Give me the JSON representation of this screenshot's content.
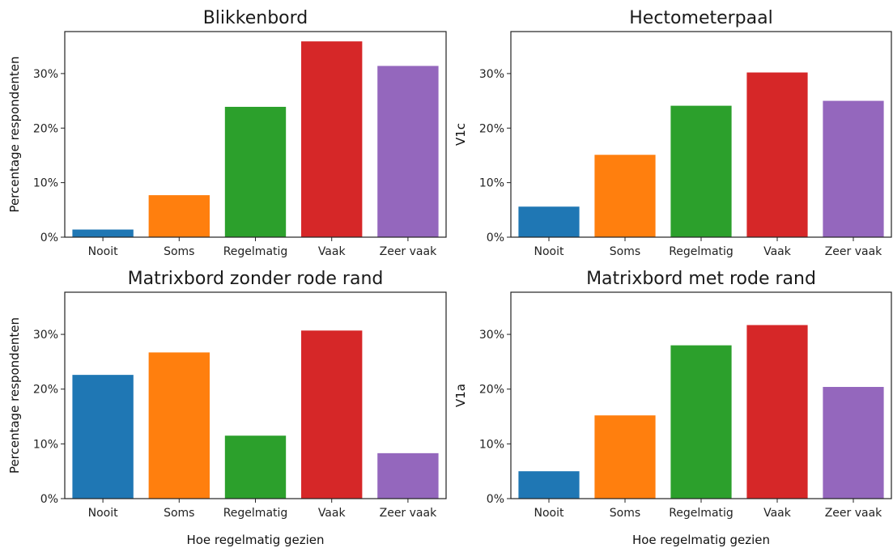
{
  "chart_data": [
    {
      "type": "bar",
      "title": "Blikkenbord",
      "xlabel": "",
      "ylabel": "Percentage respondenten",
      "categories": [
        "Nooit",
        "Soms",
        "Regelmatig",
        "Vaak",
        "Zeer vaak"
      ],
      "values": [
        1.4,
        7.7,
        23.9,
        35.9,
        31.4
      ],
      "yticks": [
        "0%",
        "10%",
        "20%",
        "30%"
      ],
      "ylim": [
        0,
        37.7
      ],
      "colors": [
        "#1f77b4",
        "#ff7f0e",
        "#2ca02c",
        "#d62728",
        "#9467bd"
      ],
      "grid": false
    },
    {
      "type": "bar",
      "title": "Hectometerpaal",
      "xlabel": "",
      "ylabel": "V1c",
      "categories": [
        "Nooit",
        "Soms",
        "Regelmatig",
        "Vaak",
        "Zeer vaak"
      ],
      "values": [
        5.6,
        15.1,
        24.1,
        30.2,
        25.0
      ],
      "yticks": [
        "0%",
        "10%",
        "20%",
        "30%"
      ],
      "ylim": [
        0,
        37.7
      ],
      "colors": [
        "#1f77b4",
        "#ff7f0e",
        "#2ca02c",
        "#d62728",
        "#9467bd"
      ],
      "grid": false
    },
    {
      "type": "bar",
      "title": "Matrixbord zonder rode rand",
      "xlabel": "Hoe regelmatig gezien",
      "ylabel": "Percentage respondenten",
      "categories": [
        "Nooit",
        "Soms",
        "Regelmatig",
        "Vaak",
        "Zeer vaak"
      ],
      "values": [
        22.6,
        26.7,
        11.5,
        30.7,
        8.3
      ],
      "yticks": [
        "0%",
        "10%",
        "20%",
        "30%"
      ],
      "ylim": [
        0,
        37.7
      ],
      "colors": [
        "#1f77b4",
        "#ff7f0e",
        "#2ca02c",
        "#d62728",
        "#9467bd"
      ],
      "grid": false
    },
    {
      "type": "bar",
      "title": "Matrixbord met rode rand",
      "xlabel": "Hoe regelmatig gezien",
      "ylabel": "V1a",
      "categories": [
        "Nooit",
        "Soms",
        "Regelmatig",
        "Vaak",
        "Zeer vaak"
      ],
      "values": [
        5.0,
        15.2,
        28.0,
        31.7,
        20.4
      ],
      "yticks": [
        "0%",
        "10%",
        "20%",
        "30%"
      ],
      "ylim": [
        0,
        37.7
      ],
      "colors": [
        "#1f77b4",
        "#ff7f0e",
        "#2ca02c",
        "#d62728",
        "#9467bd"
      ],
      "grid": false
    }
  ]
}
